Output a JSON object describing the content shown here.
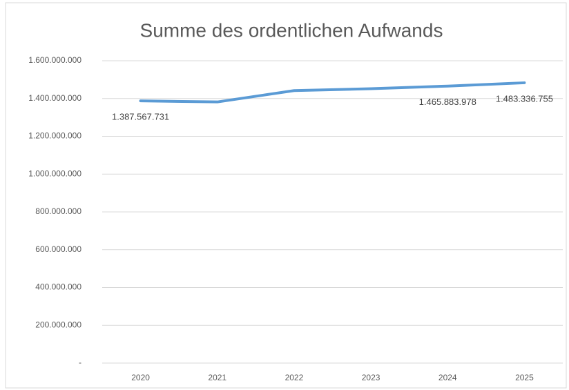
{
  "chart_data": {
    "type": "line",
    "title": "Summe des ordentlichen Aufwands",
    "categories": [
      "2020",
      "2021",
      "2022",
      "2023",
      "2024",
      "2025"
    ],
    "series": [
      {
        "name": "Summe des ordentlichen Aufwands",
        "color": "#5b9bd5",
        "values": [
          1387567731,
          1382000000,
          1442000000,
          1452000000,
          1465883978,
          1483336755
        ],
        "value_labels": [
          "1.387.567.731",
          null,
          null,
          null,
          "1.465.883.978",
          "1.483.336.755"
        ]
      }
    ],
    "ylim": [
      0,
      1600000000
    ],
    "yticks": [
      {
        "value": 0,
        "label": "-"
      },
      {
        "value": 200000000,
        "label": "200.000.000"
      },
      {
        "value": 400000000,
        "label": "400.000.000"
      },
      {
        "value": 600000000,
        "label": "600.000.000"
      },
      {
        "value": 800000000,
        "label": "800.000.000"
      },
      {
        "value": 1000000000,
        "label": "1.000.000.000"
      },
      {
        "value": 1200000000,
        "label": "1.200.000.000"
      },
      {
        "value": 1400000000,
        "label": "1.400.000.000"
      },
      {
        "value": 1600000000,
        "label": "1.600.000.000"
      }
    ],
    "grid": true
  }
}
